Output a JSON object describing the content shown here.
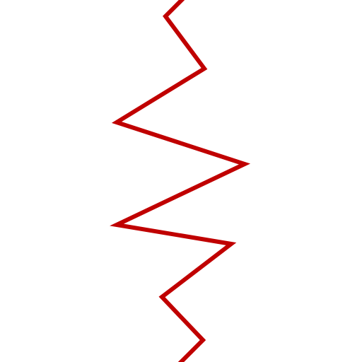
{
  "drawing": {
    "stroke_color": "#c00000",
    "background_color": "#ffffff"
  }
}
